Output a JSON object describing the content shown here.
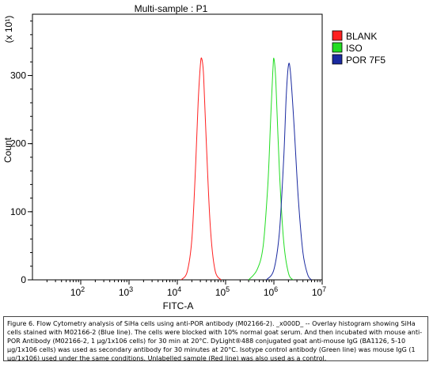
{
  "chart_data": {
    "type": "line",
    "title": "Multi-sample : P1",
    "xlabel": "FITC-A",
    "ylabel": "Count",
    "y_multiplier": "(x 10¹)",
    "x_scale": "log",
    "xlim": [
      10,
      10000000
    ],
    "ylim": [
      0,
      390
    ],
    "x_ticks": [
      {
        "base": "10",
        "exp": "2",
        "value": 100
      },
      {
        "base": "10",
        "exp": "3",
        "value": 1000
      },
      {
        "base": "10",
        "exp": "4",
        "value": 10000
      },
      {
        "base": "10",
        "exp": "5",
        "value": 100000
      },
      {
        "base": "10",
        "exp": "6",
        "value": 1000000
      },
      {
        "base": "10",
        "exp": "7",
        "value": 10000000
      }
    ],
    "y_ticks": [
      "0",
      "100",
      "200",
      "300"
    ],
    "y_tick_values": [
      0,
      100,
      200,
      300
    ],
    "legend_position": "right",
    "series": [
      {
        "name": "BLANK",
        "color": "#ff2020",
        "x": [
          12000,
          16000,
          20000,
          24000,
          27000,
          30000,
          32000,
          35000,
          40000,
          48000,
          60000,
          80000
        ],
        "y": [
          0,
          12,
          60,
          170,
          260,
          315,
          325,
          300,
          200,
          80,
          15,
          0
        ]
      },
      {
        "name": "ISO",
        "color": "#22dd22",
        "x": [
          300000,
          450000,
          600000,
          750000,
          850000,
          950000,
          1000000,
          1100000,
          1300000,
          1600000,
          2000000,
          2500000
        ],
        "y": [
          0,
          15,
          50,
          140,
          230,
          305,
          325,
          290,
          160,
          55,
          10,
          0
        ]
      },
      {
        "name": "POR 7F5",
        "color": "#1a2aa0",
        "x": [
          700000,
          1000000,
          1300000,
          1600000,
          1800000,
          2000000,
          2200000,
          2600000,
          3200000,
          4000000,
          5000000,
          6000000
        ],
        "y": [
          0,
          15,
          70,
          180,
          270,
          315,
          305,
          230,
          120,
          40,
          8,
          0
        ]
      }
    ]
  },
  "caption": "Figure 6. Flow Cytometry analysis of SiHa cells using anti-POR antibody (M02166-2). _x000D_ -- Overlay histogram showing SiHa cells stained with M02166-2 (Blue line). The cells were blocked with 10% normal goat serum. And then incubated with mouse anti-POR Antibody (M02166-2, 1 µg/1x106 cells) for 30 min at 20°C. DyLight®488 conjugated goat anti-mouse IgG (BA1126, 5-10 µg/1x106 cells) was used as secondary antibody for 30 minutes at 20°C. Isotype control antibody (Green line) was mouse IgG (1 µg/1x106) used under the same conditions. Unlabelled sample (Red line) was also used as a control."
}
